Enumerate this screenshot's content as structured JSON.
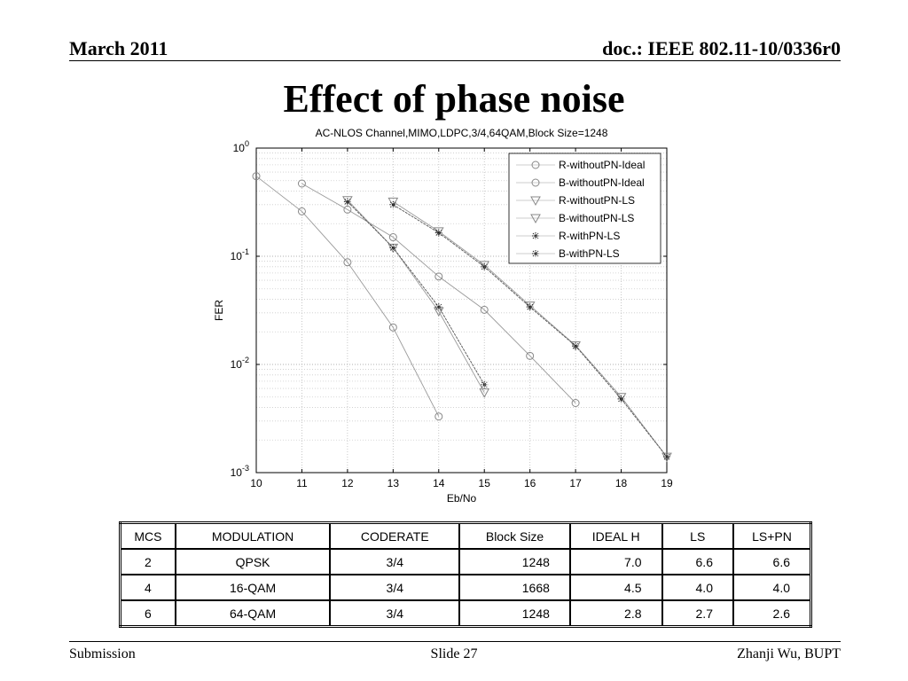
{
  "header": {
    "date": "March 2011",
    "doc": "doc.: IEEE 802.11-10/0336r0"
  },
  "title": "Effect of phase noise",
  "chart_data": {
    "type": "line",
    "title": "AC-NLOS Channel,MIMO,LDPC,3/4,64QAM,Block Size=1248",
    "xlabel": "Eb/No",
    "ylabel": "FER",
    "xlim": [
      10,
      19
    ],
    "ylim": [
      0.001,
      1
    ],
    "yscale": "log",
    "x_ticks": [
      "10",
      "11",
      "12",
      "13",
      "14",
      "15",
      "16",
      "17",
      "18",
      "19"
    ],
    "y_ticks": [
      {
        "base": "10",
        "exp": "0",
        "value": 1
      },
      {
        "base": "10",
        "exp": "-1",
        "value": 0.1
      },
      {
        "base": "10",
        "exp": "-2",
        "value": 0.01
      },
      {
        "base": "10",
        "exp": "-3",
        "value": 0.001
      }
    ],
    "grid": true,
    "legend_position": "top-right",
    "series": [
      {
        "name": "R-withoutPN-Ideal",
        "marker": "circle",
        "x": [
          10,
          11,
          12,
          13,
          14
        ],
        "y": [
          0.55,
          0.26,
          0.088,
          0.022,
          0.0033
        ]
      },
      {
        "name": "B-withoutPN-Ideal",
        "marker": "circle",
        "x": [
          11,
          12,
          13,
          14,
          15,
          16,
          17
        ],
        "y": [
          0.47,
          0.27,
          0.15,
          0.065,
          0.032,
          0.012,
          0.0044
        ]
      },
      {
        "name": "R-withoutPN-LS",
        "marker": "triangle-down",
        "x": [
          12,
          13,
          14,
          15
        ],
        "y": [
          0.33,
          0.12,
          0.031,
          0.0055
        ]
      },
      {
        "name": "B-withoutPN-LS",
        "marker": "triangle-down",
        "x": [
          13,
          14,
          15,
          16,
          17,
          18,
          19
        ],
        "y": [
          0.32,
          0.17,
          0.083,
          0.035,
          0.015,
          0.005,
          0.0014
        ]
      },
      {
        "name": "R-withPN-LS",
        "marker": "star",
        "x": [
          12,
          13,
          14,
          15
        ],
        "y": [
          0.32,
          0.12,
          0.034,
          0.0065
        ]
      },
      {
        "name": "B-withPN-LS",
        "marker": "star",
        "x": [
          13,
          14,
          15,
          16,
          17,
          18,
          19
        ],
        "y": [
          0.3,
          0.165,
          0.08,
          0.034,
          0.0148,
          0.0048,
          0.0014
        ]
      }
    ]
  },
  "table": {
    "headers": [
      "MCS",
      "MODULATION",
      "CODERATE",
      "Block Size",
      "IDEAL H",
      "LS",
      "LS+PN"
    ],
    "rows": [
      [
        "2",
        "QPSK",
        "3/4",
        "1248",
        "7.0",
        "6.6",
        "6.6"
      ],
      [
        "4",
        "16-QAM",
        "3/4",
        "1668",
        "4.5",
        "4.0",
        "4.0"
      ],
      [
        "6",
        "64-QAM",
        "3/4",
        "1248",
        "2.8",
        "2.7",
        "2.6"
      ]
    ]
  },
  "footer": {
    "left": "Submission",
    "center": "Slide 27",
    "right": "Zhanji Wu, BUPT"
  }
}
